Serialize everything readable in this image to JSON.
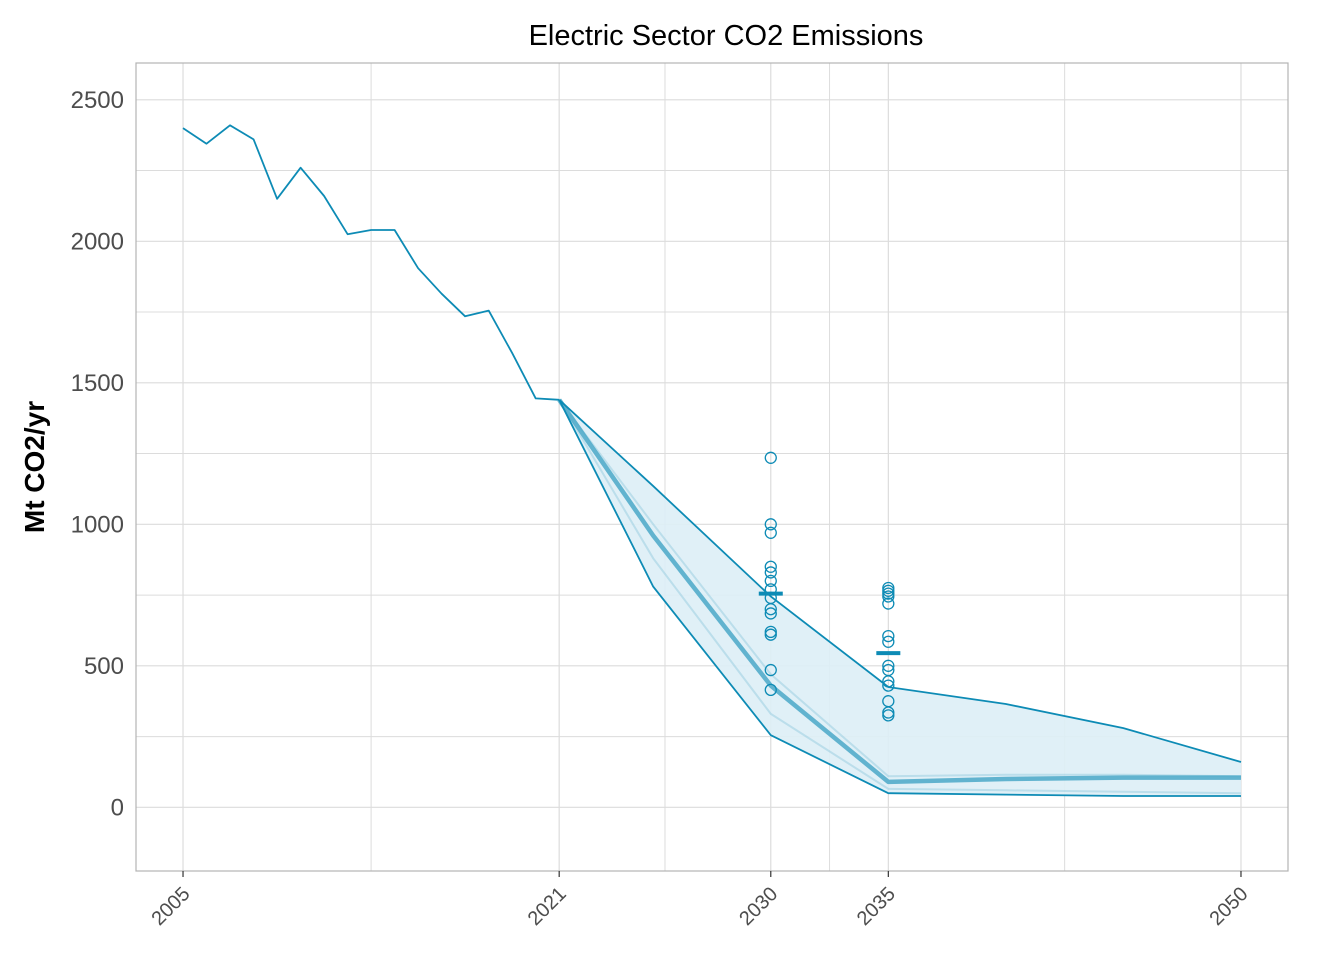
{
  "chart_data": {
    "type": "line",
    "title": "Electric Sector CO2 Emissions",
    "xlabel": "",
    "ylabel": "Mt CO2/yr",
    "xlim": [
      2003.0,
      2052.0
    ],
    "ylim": [
      -225,
      2630
    ],
    "x_ticks": [
      2005,
      2021,
      2030,
      2035,
      2050
    ],
    "y_ticks": [
      0,
      500,
      1000,
      1500,
      2000,
      2500
    ],
    "y_minor_ticks": [
      250,
      750,
      1250,
      1750,
      2250
    ],
    "x_minor_ticks": [
      2013,
      2025.5,
      2032.5,
      2042.5
    ],
    "grid": true,
    "legend": "none",
    "colors": {
      "line": "#0d8bb5",
      "band_fill": "#ddeef6",
      "median": "#4aa8c8",
      "marker": "#0d8bb5",
      "grid": "#dcdcdc",
      "panel_border": "#b3b3b3"
    },
    "historical": {
      "x": [
        2005,
        2006,
        2007,
        2008,
        2009,
        2010,
        2011,
        2012,
        2013,
        2014,
        2015,
        2016,
        2017,
        2018,
        2019,
        2020,
        2021
      ],
      "y": [
        2400,
        2345,
        2410,
        2360,
        2150,
        2260,
        2160,
        2025,
        2040,
        2040,
        1905,
        1815,
        1735,
        1755,
        1605,
        1445,
        1440
      ]
    },
    "projection_upper": {
      "x": [
        2021,
        2025,
        2030,
        2035,
        2040,
        2045,
        2050
      ],
      "y": [
        1440,
        1135,
        745,
        425,
        365,
        280,
        160
      ]
    },
    "projection_lower": {
      "x": [
        2021,
        2025,
        2030,
        2035,
        2040,
        2045,
        2050
      ],
      "y": [
        1440,
        780,
        255,
        50,
        45,
        40,
        40
      ]
    },
    "projection_median": {
      "x": [
        2021,
        2025,
        2030,
        2035,
        2040,
        2045,
        2050
      ],
      "y": [
        1440,
        960,
        430,
        90,
        100,
        105,
        105
      ]
    },
    "projection_extra_lines": [
      {
        "x": [
          2021,
          2025,
          2030,
          2035,
          2040,
          2045,
          2050
        ],
        "y": [
          1440,
          880,
          330,
          65,
          60,
          55,
          50
        ]
      },
      {
        "x": [
          2021,
          2025,
          2030,
          2035,
          2040,
          2045,
          2050
        ],
        "y": [
          1440,
          1000,
          470,
          110,
          115,
          115,
          110
        ]
      }
    ],
    "point_markers": [
      {
        "x": 2030,
        "values": [
          1235,
          1000,
          970,
          850,
          830,
          800,
          770,
          740,
          700,
          685,
          620,
          610,
          485,
          415
        ]
      },
      {
        "x": 2035,
        "values": [
          775,
          765,
          755,
          745,
          720,
          605,
          585,
          500,
          485,
          445,
          430,
          375,
          335,
          325
        ]
      }
    ],
    "mean_markers": [
      {
        "x": 2030,
        "y": 755
      },
      {
        "x": 2035,
        "y": 545
      }
    ]
  }
}
